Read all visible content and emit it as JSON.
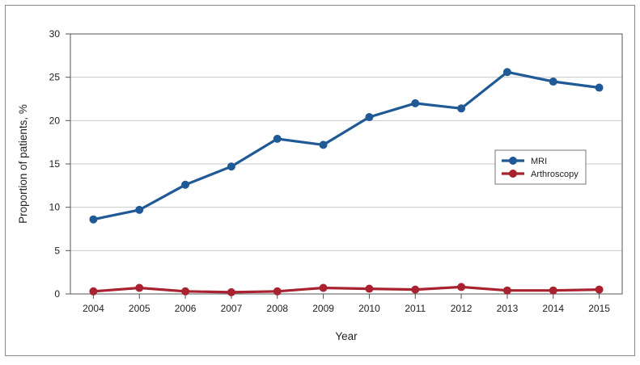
{
  "chart_data": {
    "type": "line",
    "title": "",
    "xlabel": "Year",
    "ylabel": "Proportion of patients, %",
    "categories": [
      "2004",
      "2005",
      "2006",
      "2007",
      "2008",
      "2009",
      "2010",
      "2011",
      "2012",
      "2013",
      "2014",
      "2015"
    ],
    "ylim": [
      0,
      30
    ],
    "yticks": [
      0,
      5,
      10,
      15,
      20,
      25,
      30
    ],
    "grid": true,
    "legend_position": "right",
    "series": [
      {
        "name": "MRI",
        "color": "#1f5a96",
        "values": [
          8.6,
          9.7,
          12.6,
          14.7,
          17.9,
          17.2,
          20.4,
          22.0,
          21.4,
          25.6,
          24.5,
          23.8
        ]
      },
      {
        "name": "Arthroscopy",
        "color": "#a8232f",
        "values": [
          0.3,
          0.7,
          0.3,
          0.2,
          0.3,
          0.7,
          0.6,
          0.5,
          0.8,
          0.4,
          0.4,
          0.5
        ]
      }
    ]
  }
}
